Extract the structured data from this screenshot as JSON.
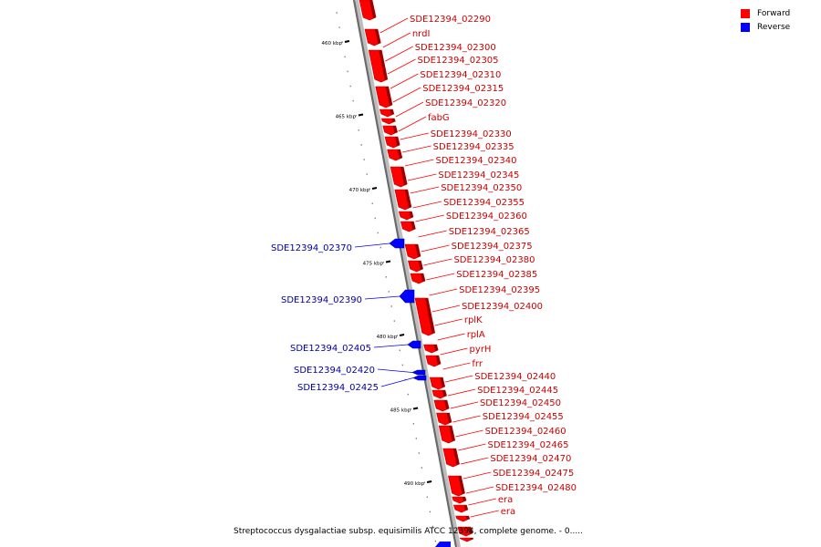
{
  "legend": {
    "forward_label": "Forward",
    "reverse_label": "Reverse",
    "forward_color": "#ff0000",
    "reverse_color": "#0000ff"
  },
  "caption": "Streptococcus dysgalactiae subsp. equisimilis ATCC 12394, complete genome. - 0.....",
  "scale": {
    "unit": "kbp",
    "ticks": [
      {
        "label": "460 kbp",
        "kbp": 460
      },
      {
        "label": "465 kbp",
        "kbp": 465
      },
      {
        "label": "470 kbp",
        "kbp": 470
      },
      {
        "label": "475 kbp",
        "kbp": 475
      },
      {
        "label": "480 kbp",
        "kbp": 480
      },
      {
        "label": "485 kbp",
        "kbp": 485
      },
      {
        "label": "490 kbp",
        "kbp": 490
      }
    ]
  },
  "genes_forward": [
    {
      "label": "SDE12394_02290"
    },
    {
      "label": "nrdI"
    },
    {
      "label": "SDE12394_02300"
    },
    {
      "label": "SDE12394_02305"
    },
    {
      "label": "SDE12394_02310"
    },
    {
      "label": "SDE12394_02315"
    },
    {
      "label": "SDE12394_02320"
    },
    {
      "label": "fabG"
    },
    {
      "label": "SDE12394_02330"
    },
    {
      "label": "SDE12394_02335"
    },
    {
      "label": "SDE12394_02340"
    },
    {
      "label": "SDE12394_02345"
    },
    {
      "label": "SDE12394_02350"
    },
    {
      "label": "SDE12394_02355"
    },
    {
      "label": "SDE12394_02360"
    },
    {
      "label": "SDE12394_02365"
    },
    {
      "label": "SDE12394_02375"
    },
    {
      "label": "SDE12394_02380"
    },
    {
      "label": "SDE12394_02385"
    },
    {
      "label": "SDE12394_02395"
    },
    {
      "label": "SDE12394_02400"
    },
    {
      "label": "rplK"
    },
    {
      "label": "rplA"
    },
    {
      "label": "pyrH"
    },
    {
      "label": "frr"
    },
    {
      "label": "SDE12394_02440"
    },
    {
      "label": "SDE12394_02445"
    },
    {
      "label": "SDE12394_02450"
    },
    {
      "label": "SDE12394_02455"
    },
    {
      "label": "SDE12394_02460"
    },
    {
      "label": "SDE12394_02465"
    },
    {
      "label": "SDE12394_02470"
    },
    {
      "label": "SDE12394_02475"
    },
    {
      "label": "SDE12394_02480"
    },
    {
      "label": "era"
    },
    {
      "label": "era"
    }
  ],
  "genes_reverse": [
    {
      "label": "SDE12394_02370"
    },
    {
      "label": "SDE12394_02390"
    },
    {
      "label": "SDE12394_02405"
    },
    {
      "label": "SDE12394_02420"
    },
    {
      "label": "SDE12394_02425"
    }
  ]
}
